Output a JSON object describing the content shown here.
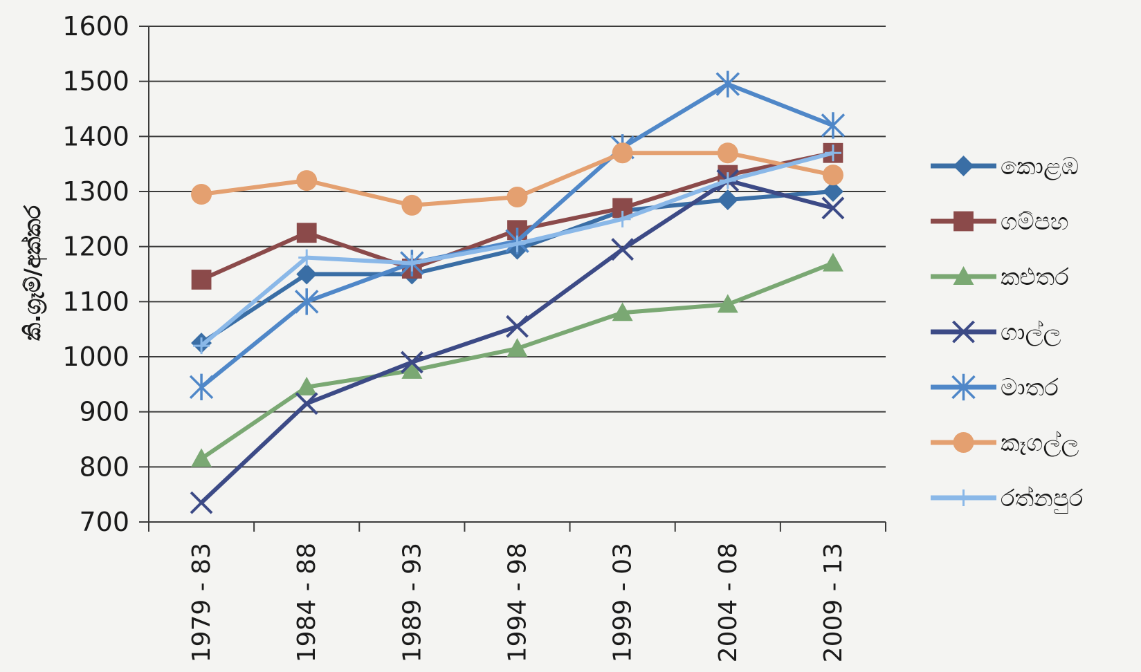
{
  "chart_data": {
    "type": "line",
    "ylabel": "කි.ග්‍රෑම්/අක්කර",
    "xlabel": "",
    "ylim": [
      700,
      1600
    ],
    "yticks": [
      700,
      800,
      900,
      1000,
      1100,
      1200,
      1300,
      1400,
      1500,
      1600
    ],
    "categories": [
      "1979 - 83",
      "1984 - 88",
      "1989 - 93",
      "1994 - 98",
      "1999 - 03",
      "2004 - 08",
      "2009 - 13"
    ],
    "grid": "horizontal",
    "legend_position": "right",
    "series": [
      {
        "name": "කොළඹ",
        "color": "#3a6ea5",
        "marker": "diamond",
        "values": [
          1025,
          1150,
          1150,
          1195,
          1265,
          1285,
          1300
        ]
      },
      {
        "name": "ගම්පහ",
        "color": "#8b4a4a",
        "marker": "square",
        "values": [
          1140,
          1225,
          1160,
          1230,
          1270,
          1330,
          1370
        ]
      },
      {
        "name": "කළුතර",
        "color": "#7aa873",
        "marker": "triangle",
        "values": [
          815,
          945,
          975,
          1015,
          1080,
          1095,
          1170
        ]
      },
      {
        "name": "ගාල්ල",
        "color": "#3c4a86",
        "marker": "x",
        "values": [
          735,
          915,
          990,
          1055,
          1195,
          1320,
          1270
        ]
      },
      {
        "name": "මාතර",
        "color": "#4f87c8",
        "marker": "asterisk",
        "values": [
          945,
          1100,
          1170,
          1210,
          1380,
          1495,
          1420
        ]
      },
      {
        "name": "කෑගල්ල",
        "color": "#e4a070",
        "marker": "circle",
        "values": [
          1295,
          1320,
          1275,
          1290,
          1370,
          1370,
          1330
        ]
      },
      {
        "name": "රත්නපුර",
        "color": "#8ab8e8",
        "marker": "plus",
        "values": [
          1020,
          1180,
          1170,
          1205,
          1250,
          1320,
          1370
        ]
      }
    ]
  }
}
